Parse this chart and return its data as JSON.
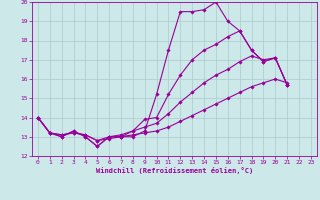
{
  "xlabel": "Windchill (Refroidissement éolien,°C)",
  "bg_color": "#cce8e8",
  "grid_color": "#aacccc",
  "line_color": "#990099",
  "xlim": [
    -0.5,
    23.5
  ],
  "ylim": [
    12,
    20
  ],
  "yticks": [
    12,
    13,
    14,
    15,
    16,
    17,
    18,
    19,
    20
  ],
  "xticks": [
    0,
    1,
    2,
    3,
    4,
    5,
    6,
    7,
    8,
    9,
    10,
    11,
    12,
    13,
    14,
    15,
    16,
    17,
    18,
    19,
    20,
    21,
    22,
    23
  ],
  "lines": [
    [
      14.0,
      13.2,
      13.0,
      13.3,
      13.0,
      12.5,
      13.0,
      13.0,
      13.0,
      13.3,
      15.2,
      17.5,
      19.5,
      19.5,
      19.6,
      20.0,
      19.0,
      18.5,
      17.5,
      16.9,
      17.1,
      15.7,
      null,
      null
    ],
    [
      14.0,
      13.2,
      13.0,
      13.3,
      13.0,
      12.5,
      13.0,
      13.0,
      13.3,
      13.9,
      14.0,
      15.2,
      16.2,
      17.0,
      17.5,
      17.8,
      18.2,
      18.5,
      17.5,
      16.9,
      17.1,
      15.7,
      null,
      null
    ],
    [
      14.0,
      13.2,
      13.1,
      13.2,
      13.1,
      12.8,
      13.0,
      13.1,
      13.3,
      13.5,
      13.7,
      14.2,
      14.8,
      15.3,
      15.8,
      16.2,
      16.5,
      16.9,
      17.2,
      17.0,
      17.1,
      15.7,
      null,
      null
    ],
    [
      14.0,
      13.2,
      13.1,
      13.2,
      13.1,
      12.8,
      12.9,
      13.0,
      13.1,
      13.2,
      13.3,
      13.5,
      13.8,
      14.1,
      14.4,
      14.7,
      15.0,
      15.3,
      15.6,
      15.8,
      16.0,
      15.8,
      null,
      null
    ]
  ]
}
